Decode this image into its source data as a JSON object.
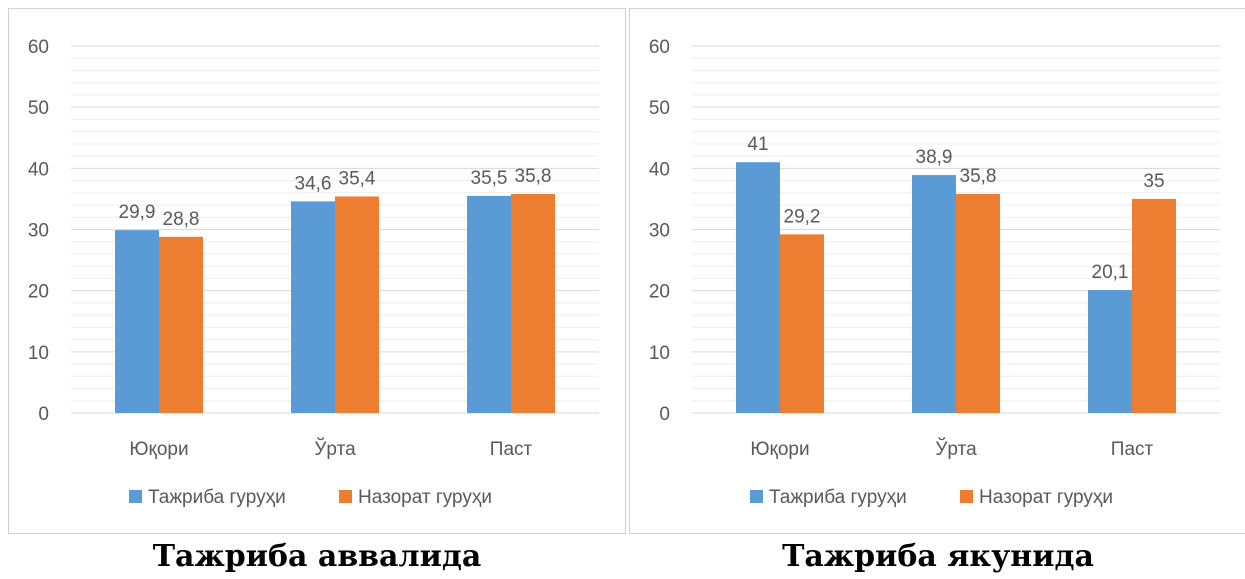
{
  "chart_data": [
    {
      "type": "bar",
      "categories": [
        "Юқори",
        "Ўрта",
        "Паст"
      ],
      "series": [
        {
          "name": "Тажриба гуруҳи",
          "values": [
            29.9,
            34.6,
            35.5
          ],
          "labels": [
            "29,9",
            "34,6",
            "35,5"
          ]
        },
        {
          "name": "Назорат гуруҳи",
          "values": [
            28.8,
            35.4,
            35.8
          ],
          "labels": [
            "28,8",
            "35,4",
            "35,8"
          ]
        }
      ],
      "ylim": [
        0,
        60
      ],
      "yticks": [
        "0",
        "10",
        "20",
        "30",
        "40",
        "50",
        "60"
      ],
      "legend_position": "bottom",
      "grid": true,
      "caption": "Тажриба аввалида"
    },
    {
      "type": "bar",
      "categories": [
        "Юқори",
        "Ўрта",
        "Паст"
      ],
      "series": [
        {
          "name": "Тажриба гуруҳи",
          "values": [
            41,
            38.9,
            20.1
          ],
          "labels": [
            "41",
            "38,9",
            "20,1"
          ]
        },
        {
          "name": "Назорат гуруҳи",
          "values": [
            29.2,
            35.8,
            35
          ],
          "labels": [
            "29,2",
            "35,8",
            "35"
          ]
        }
      ],
      "ylim": [
        0,
        60
      ],
      "yticks": [
        "0",
        "10",
        "20",
        "30",
        "40",
        "50",
        "60"
      ],
      "legend_position": "bottom",
      "grid": true,
      "caption": "Тажриба якунида"
    }
  ],
  "colors": {
    "series1": "#5b9bd5",
    "series2": "#ed7d31",
    "axis_text": "#595959",
    "gridline": "#d9d9d9",
    "minor_gridline": "#eeeeee"
  }
}
